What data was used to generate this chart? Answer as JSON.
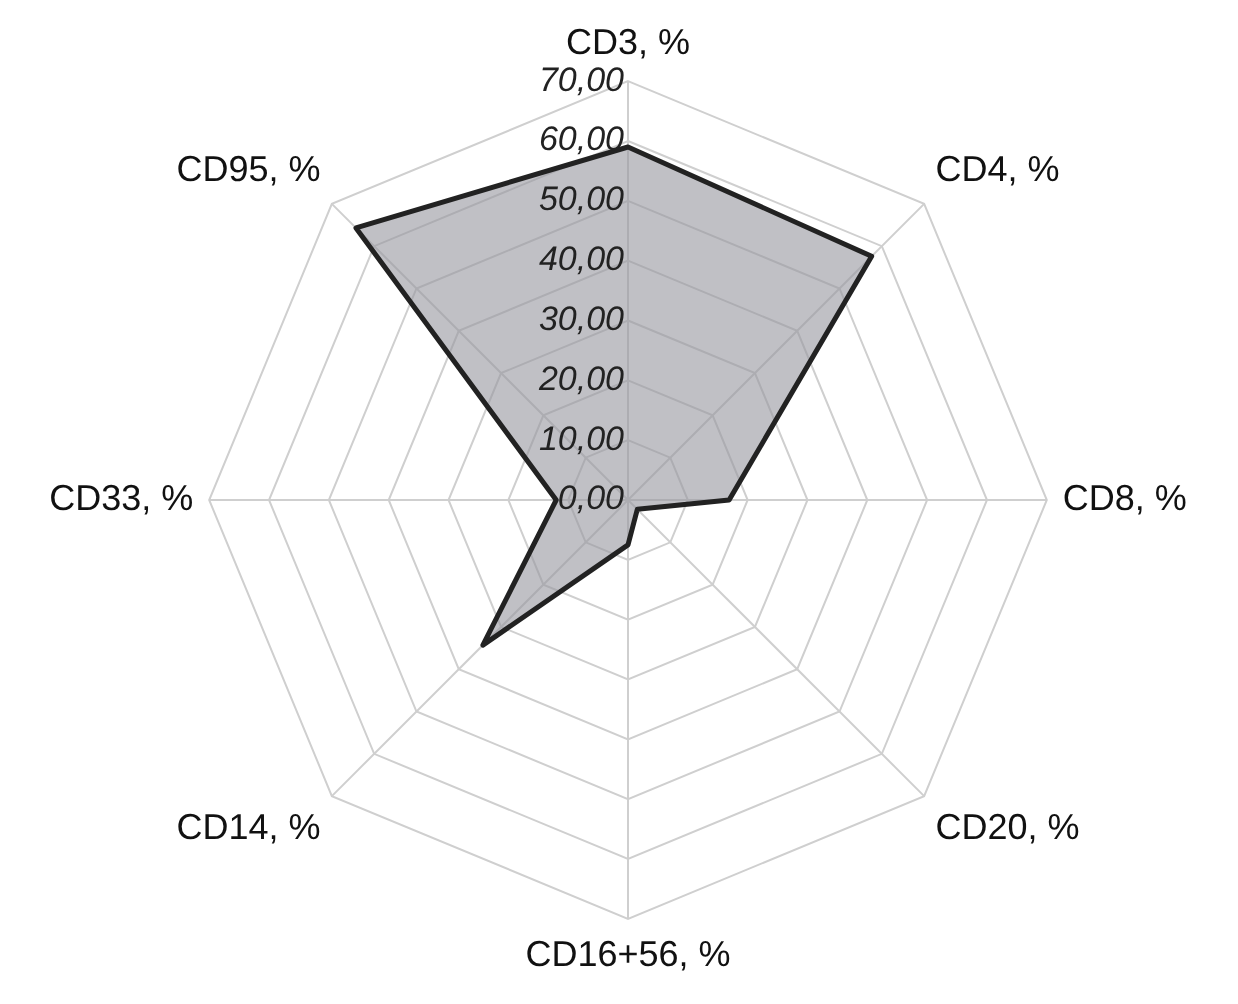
{
  "chart_data": {
    "type": "radar",
    "categories": [
      "CD3, %",
      "CD4, %",
      "CD8, %",
      "CD20, %",
      "CD16+56, %",
      "CD14, %",
      "CD33, %",
      "CD95, %"
    ],
    "series": [
      {
        "color": "#222222",
        "values": [
          59,
          57.6,
          16.9,
          2.2,
          7.5,
          34.3,
          12,
          64.3
        ]
      }
    ],
    "ylim": [
      0,
      70
    ],
    "yticks": [
      {
        "value": 0,
        "label": "0,00"
      },
      {
        "value": 10,
        "label": "10,00"
      },
      {
        "value": 20,
        "label": "20,00"
      },
      {
        "value": 30,
        "label": "30,00"
      },
      {
        "value": 40,
        "label": "40,00"
      },
      {
        "value": 50,
        "label": "50,00"
      },
      {
        "value": 60,
        "label": "60,00"
      },
      {
        "value": 70,
        "label": "70,00"
      }
    ],
    "grid": true,
    "legend": false,
    "marker": "none"
  }
}
